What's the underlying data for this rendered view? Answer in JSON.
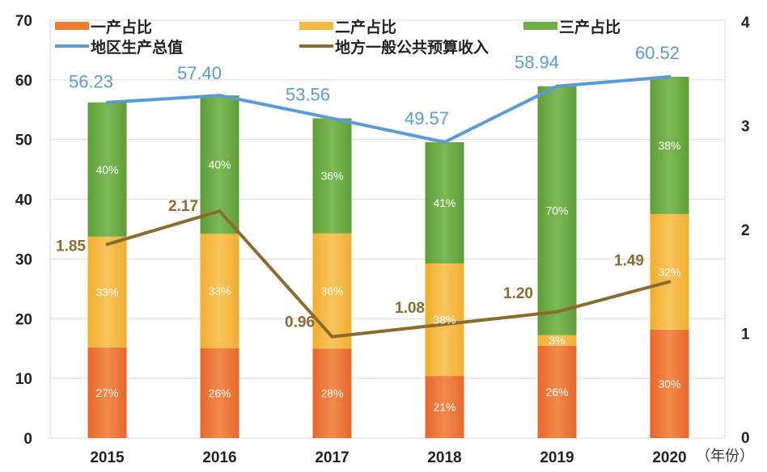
{
  "chart_data": {
    "type": "bar",
    "stacked": true,
    "categories": [
      "2015",
      "2016",
      "2017",
      "2018",
      "2019",
      "2020"
    ],
    "xlabel": "（年份）",
    "left_axis": {
      "ylim": [
        0,
        70
      ],
      "ticks": [
        "0",
        "10",
        "20",
        "30",
        "40",
        "50",
        "60",
        "70"
      ]
    },
    "right_axis": {
      "ylim": [
        0,
        4
      ],
      "ticks": [
        "0",
        "1",
        "2",
        "3",
        "4"
      ]
    },
    "grid": true,
    "legend_placement": "top",
    "series": [
      {
        "name": "一产占比",
        "type": "bar",
        "color": "#ED7D31",
        "values": [
          27,
          26,
          28,
          21,
          26,
          30
        ],
        "labels": [
          "27%",
          "26%",
          "28%",
          "21%",
          "26%",
          "30%"
        ]
      },
      {
        "name": "二产占比",
        "type": "bar",
        "color": "#F4B942",
        "values": [
          33,
          33,
          36,
          38,
          3,
          32
        ],
        "labels": [
          "33%",
          "33%",
          "36%",
          "38%",
          "3%",
          "32%"
        ]
      },
      {
        "name": "三产占比",
        "type": "bar",
        "color": "#70AD47",
        "values": [
          40,
          40,
          36,
          41,
          70,
          38
        ],
        "labels": [
          "40%",
          "40%",
          "36%",
          "41%",
          "70%",
          "38%"
        ]
      },
      {
        "name": "地区生产总值",
        "type": "line",
        "axis": "left",
        "color": "#5B9BD5",
        "values": [
          56.23,
          57.4,
          53.56,
          49.57,
          58.94,
          60.52
        ],
        "labels": [
          "56.23",
          "57.40",
          "53.56",
          "49.57",
          "58.94",
          "60.52"
        ]
      },
      {
        "name": "地方一般公共预算收入",
        "type": "line",
        "axis": "right",
        "color": "#8B6B2E",
        "values": [
          1.85,
          2.17,
          0.96,
          1.08,
          1.2,
          1.49
        ],
        "labels": [
          "1.85",
          "2.17",
          "0.96",
          "1.08",
          "1.20",
          "1.49"
        ]
      }
    ]
  }
}
